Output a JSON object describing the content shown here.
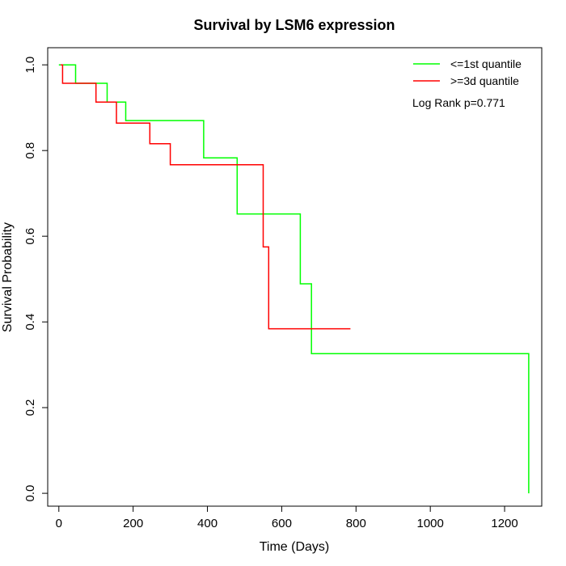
{
  "chart_data": {
    "type": "line",
    "title": "Survival by LSM6 expression",
    "xlabel": "Time (Days)",
    "ylabel": "Survival Probability",
    "xlim": [
      -30,
      1300
    ],
    "ylim": [
      -0.03,
      1.04
    ],
    "x_ticks": [
      0,
      200,
      400,
      600,
      800,
      1000,
      1200
    ],
    "x_tick_labels": [
      "0",
      "200",
      "400",
      "600",
      "800",
      "1000",
      "1200"
    ],
    "y_ticks": [
      0.0,
      0.2,
      0.4,
      0.6,
      0.8,
      1.0
    ],
    "y_tick_labels": [
      "0.0",
      "0.2",
      "0.4",
      "0.6",
      "0.8",
      "1.0"
    ],
    "grid": false,
    "legend_position": "top-right",
    "annotation": "Log Rank p=0.771",
    "series": [
      {
        "name": "<=1st quantile",
        "color": "#00ff00",
        "step": true,
        "points": [
          [
            0,
            1.0
          ],
          [
            45,
            1.0
          ],
          [
            45,
            0.957
          ],
          [
            130,
            0.957
          ],
          [
            130,
            0.913
          ],
          [
            180,
            0.913
          ],
          [
            180,
            0.87
          ],
          [
            390,
            0.87
          ],
          [
            390,
            0.783
          ],
          [
            480,
            0.783
          ],
          [
            480,
            0.652
          ],
          [
            650,
            0.652
          ],
          [
            650,
            0.489
          ],
          [
            680,
            0.489
          ],
          [
            680,
            0.326
          ],
          [
            1265,
            0.326
          ],
          [
            1265,
            0.0
          ]
        ]
      },
      {
        "name": ">=3d quantile",
        "color": "#ff0000",
        "step": true,
        "points": [
          [
            5,
            1.0
          ],
          [
            10,
            1.0
          ],
          [
            10,
            0.957
          ],
          [
            100,
            0.957
          ],
          [
            100,
            0.913
          ],
          [
            155,
            0.913
          ],
          [
            155,
            0.864
          ],
          [
            245,
            0.864
          ],
          [
            245,
            0.816
          ],
          [
            300,
            0.816
          ],
          [
            300,
            0.767
          ],
          [
            550,
            0.767
          ],
          [
            550,
            0.575
          ],
          [
            565,
            0.575
          ],
          [
            565,
            0.384
          ],
          [
            785,
            0.384
          ]
        ]
      }
    ]
  }
}
